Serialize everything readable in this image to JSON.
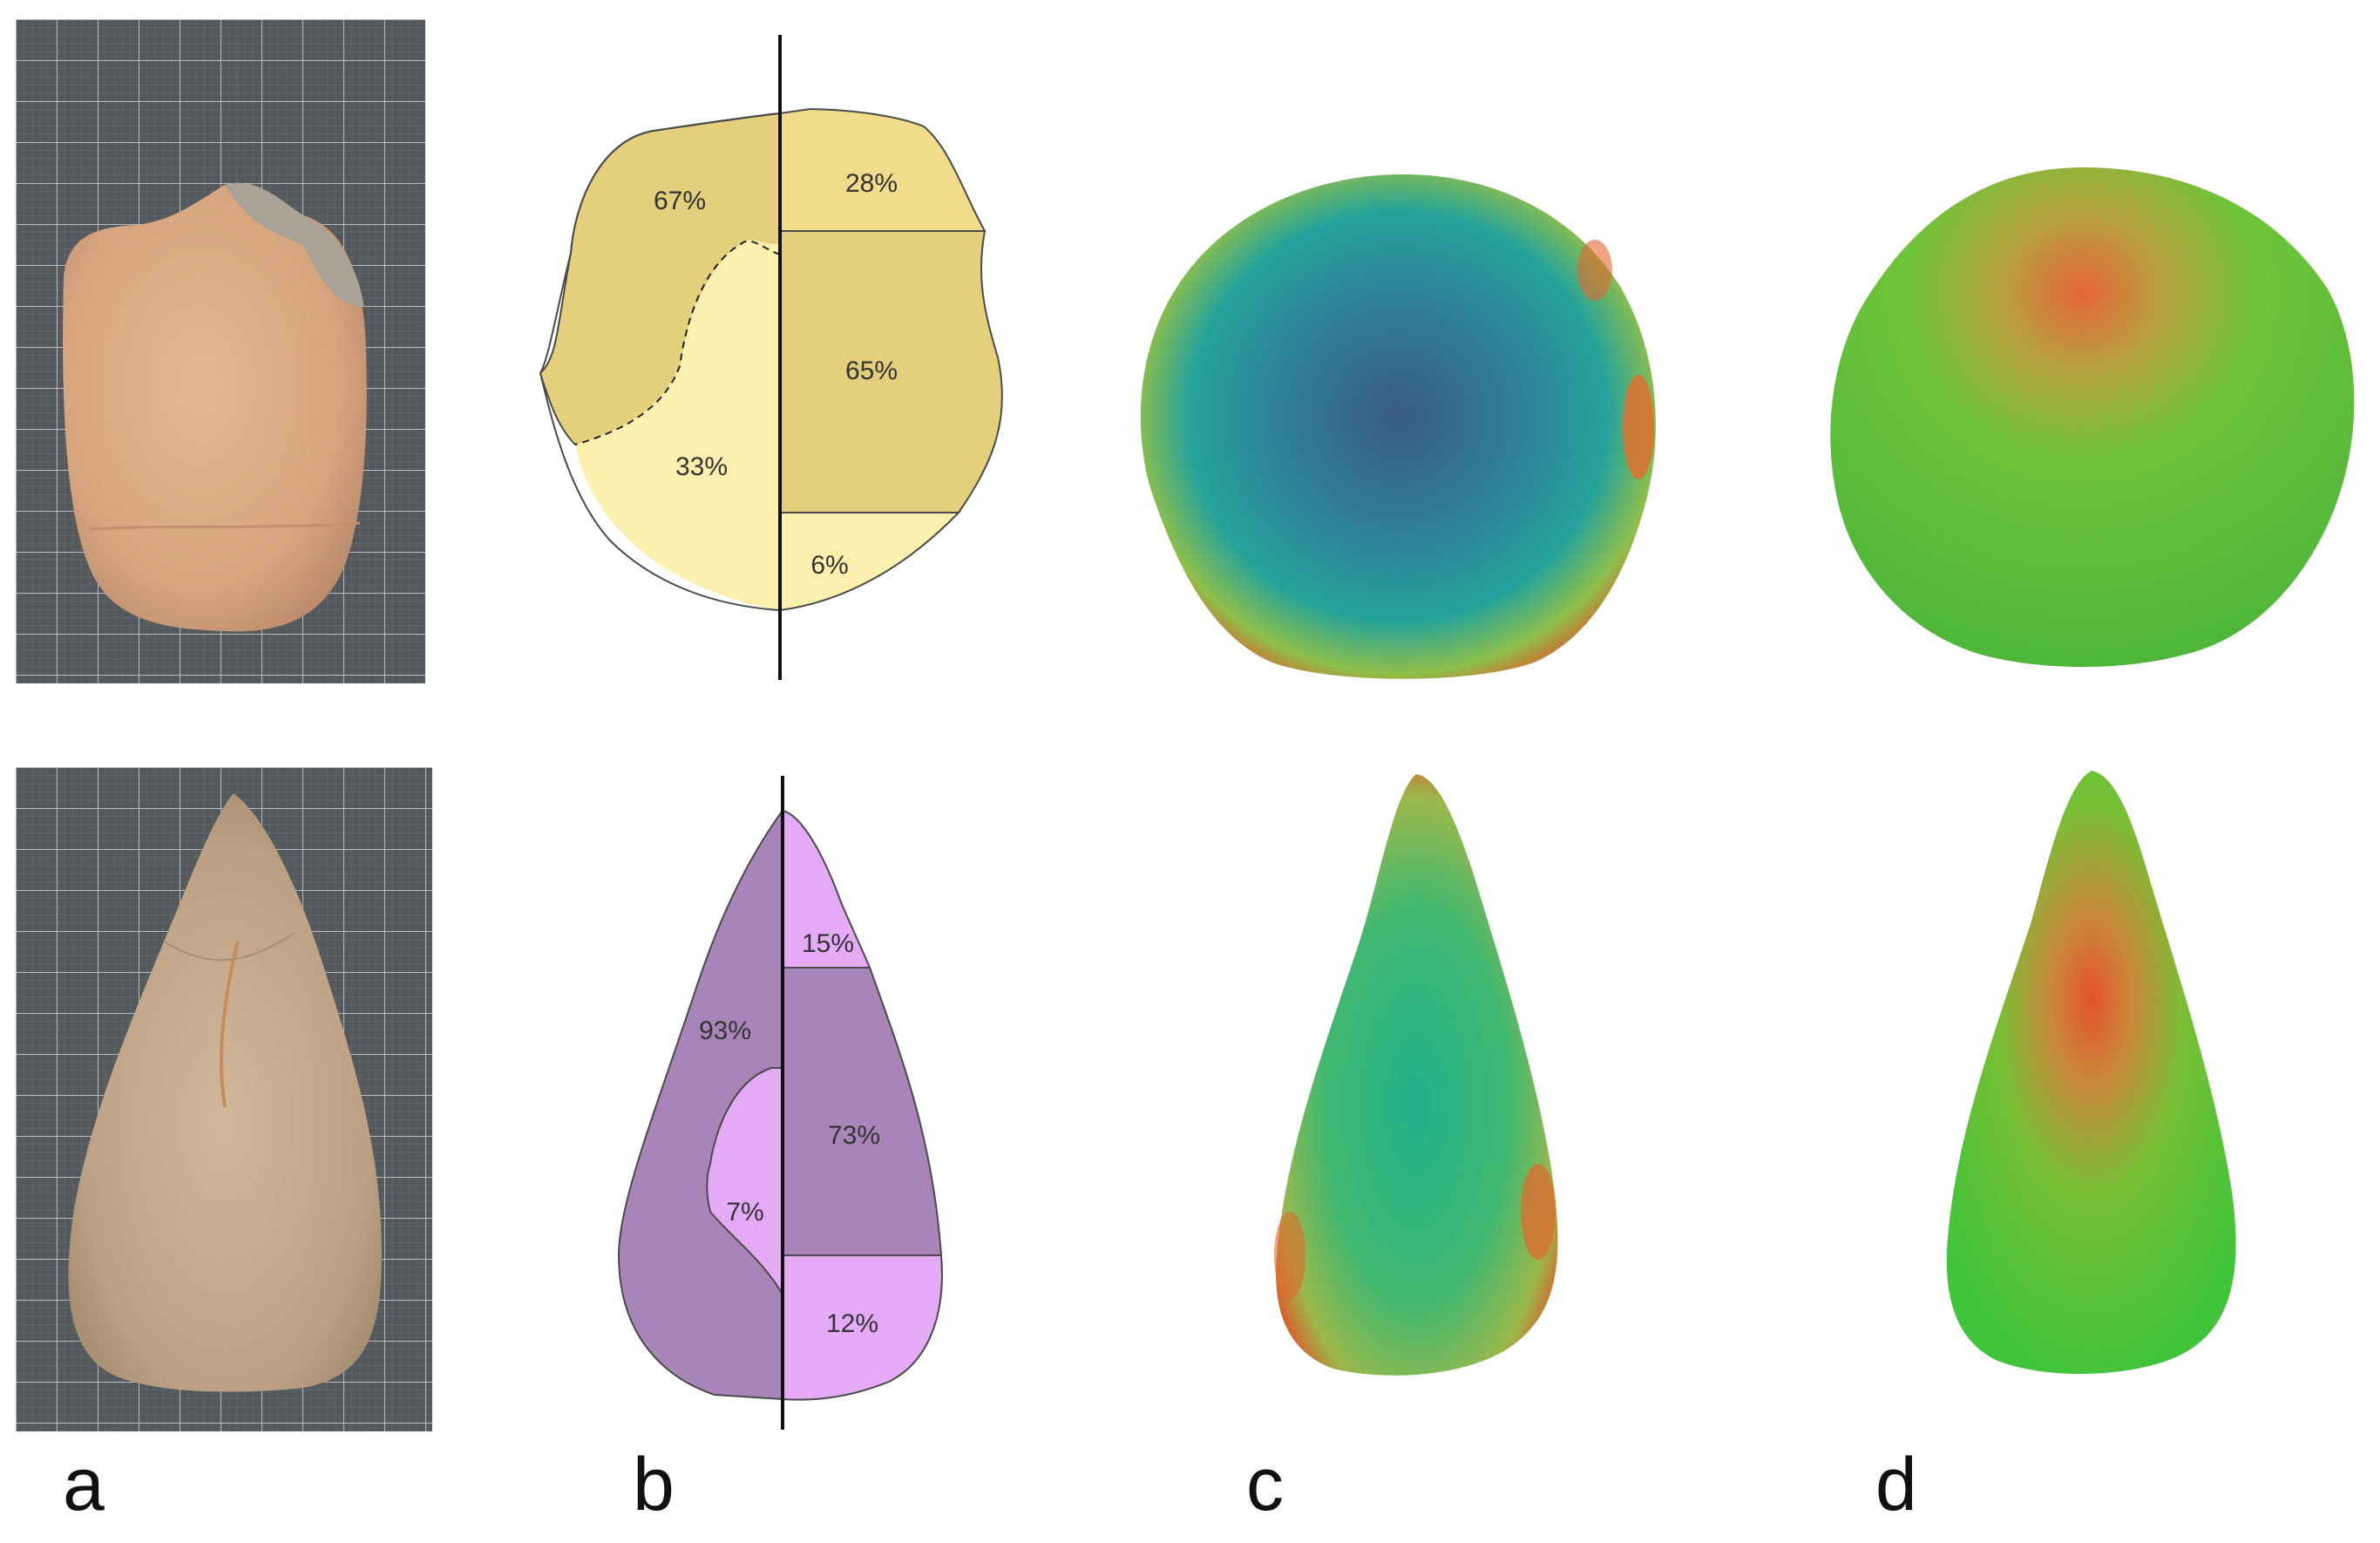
{
  "panel_labels": {
    "a": "a",
    "b": "b",
    "c": "c",
    "d": "d"
  },
  "top_specimen": {
    "left_percentages": {
      "upper": "67%",
      "lower": "33%"
    },
    "right_percentages": {
      "top": "28%",
      "middle": "65%",
      "bottom": "6%"
    },
    "colors": {
      "dark": "#e3cf7c",
      "medium": "#f0dc8a",
      "light": "#fbf0ae",
      "outline": "#4a4a4a"
    }
  },
  "bottom_specimen": {
    "left_percentages": {
      "outer": "93%",
      "inner": "7%"
    },
    "right_percentages": {
      "top": "15%",
      "middle": "73%",
      "bottom": "12%"
    },
    "colors": {
      "dark": "#a884b8",
      "medium": "#bb8ed4",
      "light": "#e4aaf6",
      "outline": "#4a4a4a"
    }
  },
  "icons": {
    "photo_top": "cleaver-photo-icon",
    "photo_bottom": "handaxe-photo-icon"
  }
}
